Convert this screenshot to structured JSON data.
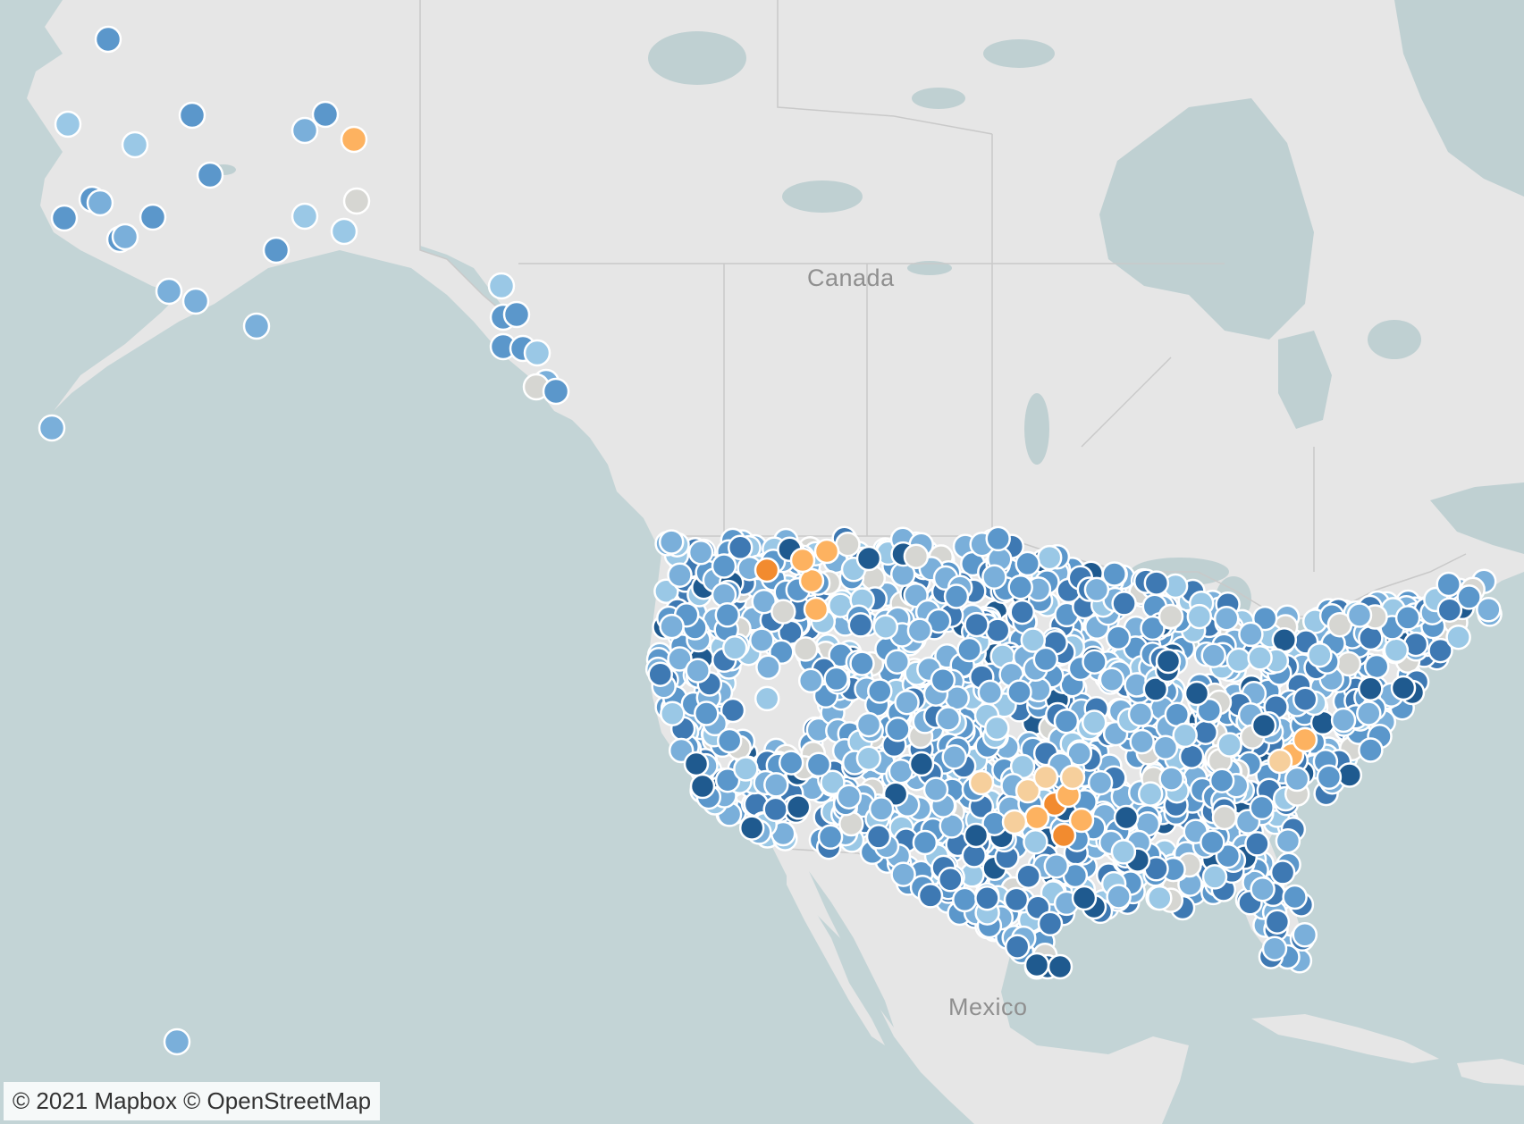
{
  "map": {
    "labels": {
      "canada": "Canada",
      "mexico": "Mexico"
    },
    "attribution": "© 2021 Mapbox © OpenStreetMap",
    "colors": {
      "ocean": "#c3d4d6",
      "land": "#e6e6e6",
      "lake": "#bfd0d2",
      "border": "#c9c9c9",
      "marker_outline": "#ffffff",
      "palette": [
        "#1f5a8f",
        "#3e79b3",
        "#5b97cb",
        "#7aafda",
        "#9ac8e6",
        "#d6d6d2",
        "#f6cf9c",
        "#fdb260",
        "#f28b2f"
      ]
    }
  }
}
